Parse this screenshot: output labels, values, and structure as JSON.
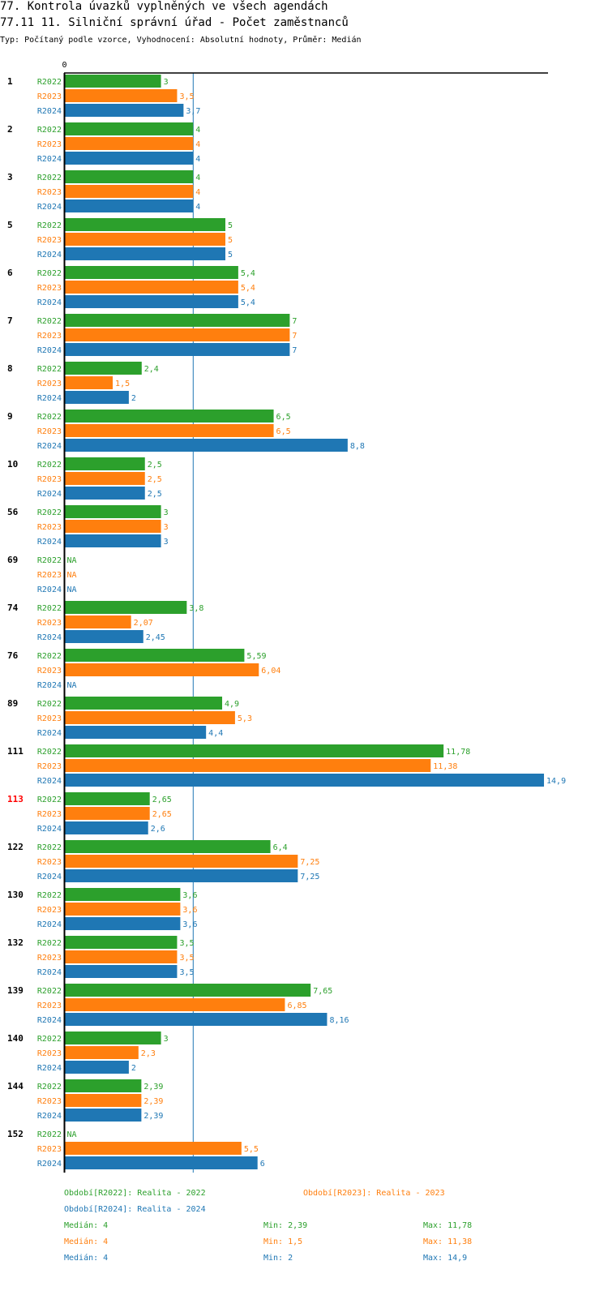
{
  "header": {
    "title_line1": "77. Kontrola úvazků vyplněných ve všech agendách",
    "title_line2": "77.11 11. Silniční správní úřad - Počet zaměstnanců",
    "subtitle": "Typ: Počítaný podle vzorce, Vyhodnocení: Absolutní hodnoty, Průměr: Medián"
  },
  "colors": {
    "R2022": "#2ca02c",
    "R2023": "#ff7f0e",
    "R2024": "#1f77b4",
    "highlight": "#ff0000",
    "median_line": "#1f77b4"
  },
  "chart_data": {
    "type": "bar",
    "orientation": "horizontal",
    "axis_zero_label": "0",
    "median_reference": 4,
    "series_names": [
      "R2022",
      "R2023",
      "R2024"
    ],
    "na_label": "NA",
    "highlighted_group": "113",
    "groups": [
      {
        "label": "1",
        "values": [
          3,
          3.5,
          3.7
        ],
        "texts": [
          "3",
          "3,5",
          "3,7"
        ]
      },
      {
        "label": "2",
        "values": [
          4,
          4,
          4
        ],
        "texts": [
          "4",
          "4",
          "4"
        ]
      },
      {
        "label": "3",
        "values": [
          4,
          4,
          4
        ],
        "texts": [
          "4",
          "4",
          "4"
        ]
      },
      {
        "label": "5",
        "values": [
          5,
          5,
          5
        ],
        "texts": [
          "5",
          "5",
          "5"
        ]
      },
      {
        "label": "6",
        "values": [
          5.4,
          5.4,
          5.4
        ],
        "texts": [
          "5,4",
          "5,4",
          "5,4"
        ]
      },
      {
        "label": "7",
        "values": [
          7,
          7,
          7
        ],
        "texts": [
          "7",
          "7",
          "7"
        ]
      },
      {
        "label": "8",
        "values": [
          2.4,
          1.5,
          2
        ],
        "texts": [
          "2,4",
          "1,5",
          "2"
        ]
      },
      {
        "label": "9",
        "values": [
          6.5,
          6.5,
          8.8
        ],
        "texts": [
          "6,5",
          "6,5",
          "8,8"
        ]
      },
      {
        "label": "10",
        "values": [
          2.5,
          2.5,
          2.5
        ],
        "texts": [
          "2,5",
          "2,5",
          "2,5"
        ]
      },
      {
        "label": "56",
        "values": [
          3,
          3,
          3
        ],
        "texts": [
          "3",
          "3",
          "3"
        ]
      },
      {
        "label": "69",
        "values": [
          null,
          null,
          null
        ],
        "texts": [
          "NA",
          "NA",
          "NA"
        ]
      },
      {
        "label": "74",
        "values": [
          3.8,
          2.07,
          2.45
        ],
        "texts": [
          "3,8",
          "2,07",
          "2,45"
        ]
      },
      {
        "label": "76",
        "values": [
          5.59,
          6.04,
          null
        ],
        "texts": [
          "5,59",
          "6,04",
          "NA"
        ]
      },
      {
        "label": "89",
        "values": [
          4.9,
          5.3,
          4.4
        ],
        "texts": [
          "4,9",
          "5,3",
          "4,4"
        ]
      },
      {
        "label": "111",
        "values": [
          11.78,
          11.38,
          14.9
        ],
        "texts": [
          "11,78",
          "11,38",
          "14,9"
        ]
      },
      {
        "label": "113",
        "values": [
          2.65,
          2.65,
          2.6
        ],
        "texts": [
          "2,65",
          "2,65",
          "2,6"
        ]
      },
      {
        "label": "122",
        "values": [
          6.4,
          7.25,
          7.25
        ],
        "texts": [
          "6,4",
          "7,25",
          "7,25"
        ]
      },
      {
        "label": "130",
        "values": [
          3.6,
          3.6,
          3.6
        ],
        "texts": [
          "3,6",
          "3,6",
          "3,6"
        ]
      },
      {
        "label": "132",
        "values": [
          3.5,
          3.5,
          3.5
        ],
        "texts": [
          "3,5",
          "3,5",
          "3,5"
        ]
      },
      {
        "label": "139",
        "values": [
          7.65,
          6.85,
          8.16
        ],
        "texts": [
          "7,65",
          "6,85",
          "8,16"
        ]
      },
      {
        "label": "140",
        "values": [
          3,
          2.3,
          2
        ],
        "texts": [
          "3",
          "2,3",
          "2"
        ]
      },
      {
        "label": "144",
        "values": [
          2.39,
          2.39,
          2.39
        ],
        "texts": [
          "2,39",
          "2,39",
          "2,39"
        ]
      },
      {
        "label": "152",
        "values": [
          null,
          5.5,
          6
        ],
        "texts": [
          "NA",
          "5,5",
          "6"
        ]
      }
    ]
  },
  "legend": {
    "r2022": "Období[R2022]: Realita - 2022",
    "r2023": "Období[R2023]: Realita - 2023",
    "r2024": "Období[R2024]: Realita - 2024"
  },
  "stats": {
    "r2022": {
      "median": "Medián: 4",
      "min": "Min: 2,39",
      "max": "Max: 11,78"
    },
    "r2023": {
      "median": "Medián: 4",
      "min": "Min: 1,5",
      "max": "Max: 11,38"
    },
    "r2024": {
      "median": "Medián: 4",
      "min": "Min: 2",
      "max": "Max: 14,9"
    }
  }
}
